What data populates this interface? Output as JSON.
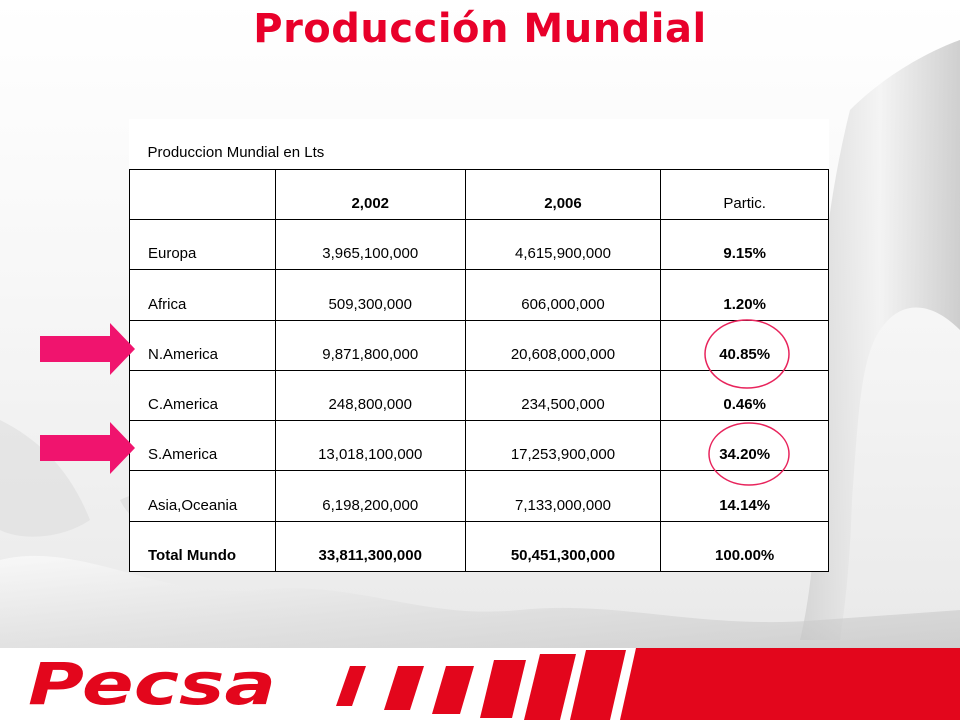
{
  "title": "Producción Mundial",
  "table": {
    "caption": "Produccion Mundial en Lts",
    "headers": [
      "",
      "2,002",
      "2,006",
      "Partic."
    ],
    "rows": [
      {
        "region": "Europa",
        "y2002": "3,965,100,000",
        "y2006": "4,615,900,000",
        "partic": "9.15%"
      },
      {
        "region": "Africa",
        "y2002": "509,300,000",
        "y2006": "606,000,000",
        "partic": "1.20%"
      },
      {
        "region": "N.America",
        "y2002": "9,871,800,000",
        "y2006": "20,608,000,000",
        "partic": "40.85%"
      },
      {
        "region": "C.America",
        "y2002": "248,800,000",
        "y2006": "234,500,000",
        "partic": "0.46%"
      },
      {
        "region": "S.America",
        "y2002": "13,018,100,000",
        "y2006": "17,253,900,000",
        "partic": "34.20%"
      },
      {
        "region": "Asia,Oceania",
        "y2002": "6,198,200,000",
        "y2006": "7,133,000,000",
        "partic": "14.14%"
      }
    ],
    "total": {
      "region": "Total Mundo",
      "y2002": "33,811,300,000",
      "y2006": "50,451,300,000",
      "partic": "100.00%"
    }
  },
  "logo": {
    "text": "Pecsa"
  },
  "colors": {
    "title": "#e8002a",
    "arrow": "#f0146e",
    "circle": "#e8245c",
    "logo": "#e3061c"
  }
}
